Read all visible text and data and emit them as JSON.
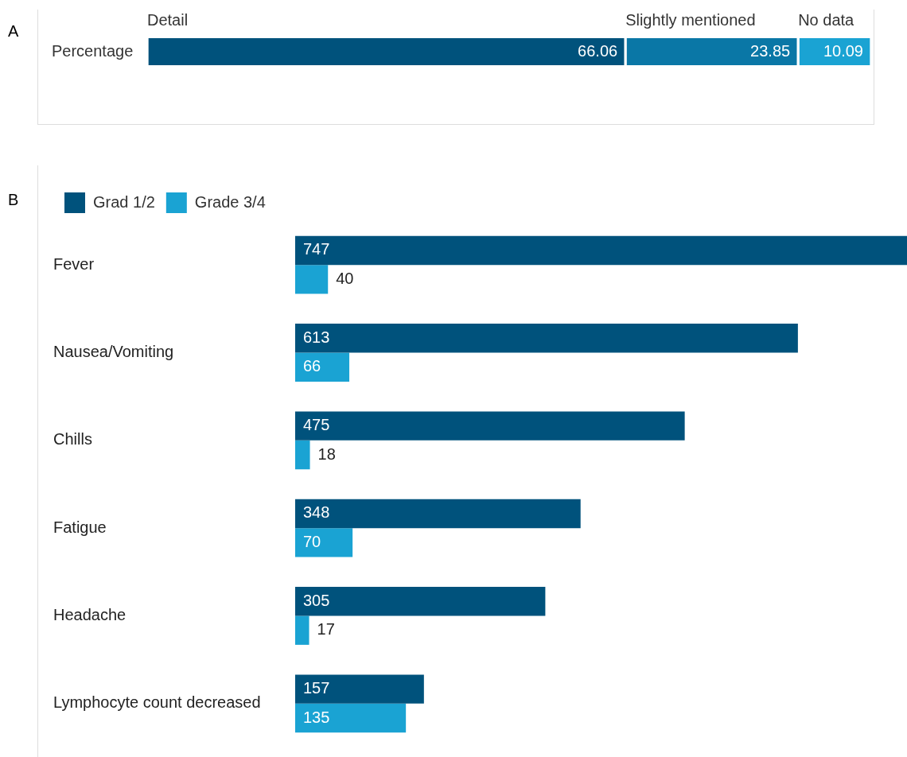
{
  "chart_data": [
    {
      "type": "bar",
      "orientation": "horizontal",
      "stacked": true,
      "categories": [
        "Percentage"
      ],
      "series": [
        {
          "name": "Detail",
          "color": "#00527c",
          "values": [
            66.06
          ]
        },
        {
          "name": "Slightly mentioned",
          "color": "#0a77a6",
          "values": [
            23.85
          ]
        },
        {
          "name": "No data",
          "color": "#1aa3d3",
          "values": [
            10.09
          ]
        }
      ],
      "data_labels": true,
      "annotations": [
        "A"
      ]
    },
    {
      "type": "bar",
      "orientation": "horizontal",
      "categories": [
        "Fever",
        "Nausea/Vomiting",
        "Chills",
        "Fatigue",
        "Headache",
        "Lymphocyte count decreased"
      ],
      "series": [
        {
          "name": "Grad 1/2",
          "color": "#00527c",
          "values": [
            747,
            613,
            475,
            348,
            305,
            157
          ]
        },
        {
          "name": "Grade 3/4",
          "color": "#1aa3d3",
          "values": [
            40,
            66,
            18,
            70,
            17,
            135
          ]
        }
      ],
      "data_labels": true,
      "legend": "top left",
      "annotations": [
        "B"
      ]
    }
  ]
}
